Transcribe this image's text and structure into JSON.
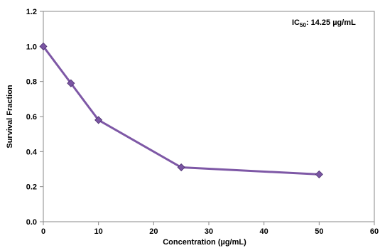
{
  "chart_data": {
    "type": "line",
    "title": "",
    "xlabel": "Concentration (µg/mL)",
    "ylabel": "Survival Fraction",
    "xlim": [
      0,
      60
    ],
    "ylim": [
      0,
      1.2
    ],
    "xticks": [
      0,
      10,
      20,
      30,
      40,
      50,
      60
    ],
    "yticks": [
      0.0,
      0.2,
      0.4,
      0.6,
      0.8,
      1.0,
      1.2
    ],
    "grid": false,
    "legend": "none",
    "annotation": {
      "prefix": "IC",
      "subscript": "50",
      "value_text": ": 14.25 µg/mL",
      "placement": "top-right"
    },
    "series": [
      {
        "x": [
          0,
          5,
          10,
          25,
          50
        ],
        "y": [
          1.0,
          0.79,
          0.58,
          0.31,
          0.27
        ],
        "marker": "diamond",
        "color": "#7E58A6",
        "marker_color": "#7A55A3",
        "marker_edge": "#4B2F6E"
      }
    ],
    "frame_color": "#888888"
  }
}
